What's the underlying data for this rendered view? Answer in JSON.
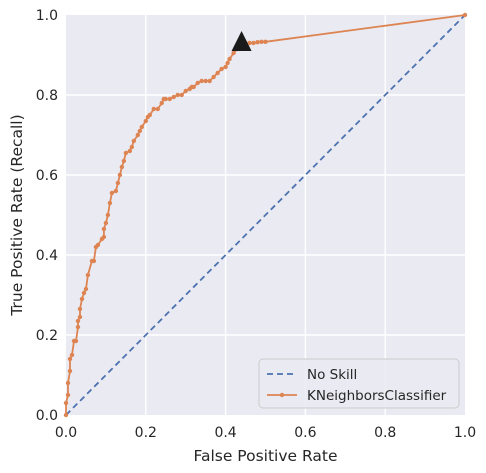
{
  "chart_data": {
    "type": "line",
    "title": "",
    "xlabel": "False Positive Rate",
    "ylabel": "True Positive Rate (Recall)",
    "xlim": [
      0.0,
      1.0
    ],
    "ylim": [
      0.0,
      1.0
    ],
    "xticks": [
      "0.0",
      "0.2",
      "0.4",
      "0.6",
      "0.8",
      "1.0"
    ],
    "yticks": [
      "0.0",
      "0.2",
      "0.4",
      "0.6",
      "0.8",
      "1.0"
    ],
    "grid": true,
    "legend_position": "bottom-right",
    "series": [
      {
        "name": "No Skill",
        "style": "dashed",
        "color": "#4c72b0",
        "x": [
          0.0,
          1.0
        ],
        "y": [
          0.0,
          1.0
        ]
      },
      {
        "name": "KNeighborsClassifier",
        "style": "line-with-point-markers",
        "color": "#dd8452",
        "x": [
          0.0,
          0.0,
          0.005,
          0.005,
          0.01,
          0.01,
          0.015,
          0.02,
          0.025,
          0.03,
          0.03,
          0.035,
          0.035,
          0.04,
          0.045,
          0.05,
          0.055,
          0.065,
          0.07,
          0.075,
          0.08,
          0.09,
          0.095,
          0.095,
          0.1,
          0.105,
          0.11,
          0.115,
          0.125,
          0.13,
          0.135,
          0.14,
          0.145,
          0.15,
          0.16,
          0.165,
          0.17,
          0.18,
          0.185,
          0.19,
          0.2,
          0.205,
          0.21,
          0.22,
          0.23,
          0.24,
          0.245,
          0.25,
          0.26,
          0.27,
          0.28,
          0.29,
          0.3,
          0.31,
          0.315,
          0.32,
          0.33,
          0.34,
          0.35,
          0.36,
          0.37,
          0.38,
          0.39,
          0.4,
          0.405,
          0.41,
          0.42,
          0.43,
          0.44,
          0.45,
          0.46,
          0.47,
          0.48,
          0.49,
          0.5,
          1.0
        ],
        "y": [
          0.0,
          0.03,
          0.05,
          0.08,
          0.11,
          0.14,
          0.15,
          0.185,
          0.185,
          0.22,
          0.235,
          0.245,
          0.265,
          0.29,
          0.305,
          0.315,
          0.35,
          0.385,
          0.385,
          0.42,
          0.425,
          0.44,
          0.445,
          0.465,
          0.48,
          0.5,
          0.53,
          0.555,
          0.56,
          0.58,
          0.6,
          0.62,
          0.635,
          0.655,
          0.66,
          0.67,
          0.685,
          0.7,
          0.71,
          0.72,
          0.735,
          0.745,
          0.75,
          0.765,
          0.765,
          0.78,
          0.79,
          0.79,
          0.79,
          0.795,
          0.8,
          0.8,
          0.81,
          0.815,
          0.82,
          0.82,
          0.83,
          0.835,
          0.835,
          0.835,
          0.845,
          0.855,
          0.865,
          0.87,
          0.88,
          0.89,
          0.905,
          0.915,
          0.925,
          0.93,
          0.93,
          0.93,
          0.932,
          0.933,
          0.933,
          1.0
        ]
      }
    ],
    "annotations": [
      {
        "type": "marker",
        "shape": "triangle",
        "color": "#1a1a1a",
        "x": 0.44,
        "y": 0.93
      }
    ]
  }
}
